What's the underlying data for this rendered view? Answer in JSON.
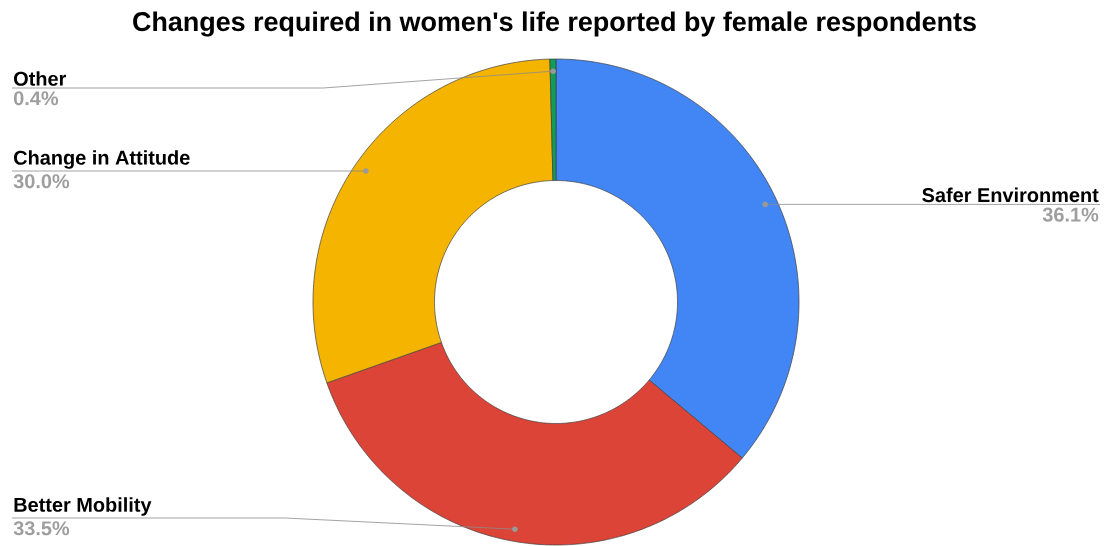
{
  "chart_data": {
    "type": "donut",
    "title": "Changes required in women's life reported by female respondents",
    "categories": [
      "Safer Environment",
      "Better Mobility",
      "Change in Attitude",
      "Other"
    ],
    "values": [
      36.1,
      33.5,
      30.0,
      0.4
    ],
    "colors": [
      "#4285f4",
      "#db4437",
      "#f4b400",
      "#0f9d58"
    ],
    "value_labels": [
      "36.1%",
      "33.5%",
      "30.0%",
      "0.4%"
    ]
  }
}
